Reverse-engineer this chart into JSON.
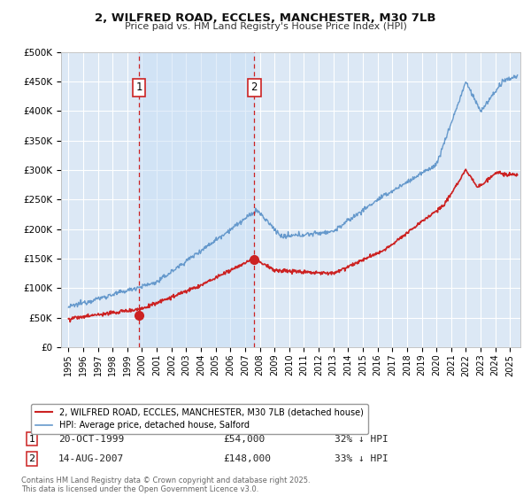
{
  "title_line1": "2, WILFRED ROAD, ECCLES, MANCHESTER, M30 7LB",
  "title_line2": "Price paid vs. HM Land Registry's House Price Index (HPI)",
  "background_color": "#ffffff",
  "plot_bg_color": "#dce8f5",
  "grid_color": "#ffffff",
  "hpi_color": "#6699cc",
  "price_color": "#cc2222",
  "sale1_year": 1999.8,
  "sale1_price": 54000,
  "sale2_year": 2007.62,
  "sale2_price": 148000,
  "legend_label_price": "2, WILFRED ROAD, ECCLES, MANCHESTER, M30 7LB (detached house)",
  "legend_label_hpi": "HPI: Average price, detached house, Salford",
  "sale1_date": "20-OCT-1999",
  "sale1_price_str": "£54,000",
  "sale1_pct": "32% ↓ HPI",
  "sale2_date": "14-AUG-2007",
  "sale2_price_str": "£148,000",
  "sale2_pct": "33% ↓ HPI",
  "footnote": "Contains HM Land Registry data © Crown copyright and database right 2025.\nThis data is licensed under the Open Government Licence v3.0.",
  "ylim": [
    0,
    500000
  ],
  "xlim_start": 1994.5,
  "xlim_end": 2025.7
}
